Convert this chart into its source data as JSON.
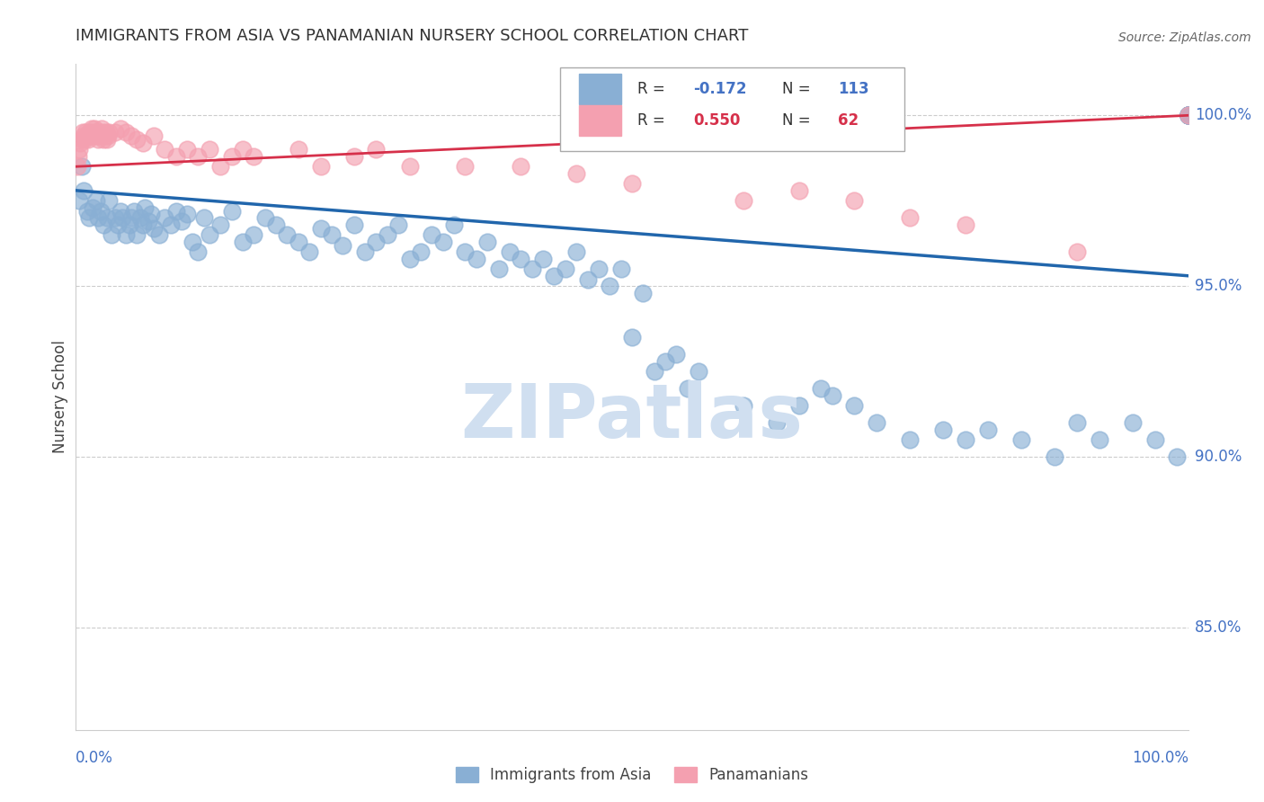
{
  "title": "IMMIGRANTS FROM ASIA VS PANAMANIAN NURSERY SCHOOL CORRELATION CHART",
  "source": "Source: ZipAtlas.com",
  "ylabel": "Nursery School",
  "xlim": [
    0.0,
    100.0
  ],
  "ylim": [
    82.0,
    101.5
  ],
  "yticks": [
    85.0,
    90.0,
    95.0,
    100.0
  ],
  "ytick_labels": [
    "85.0%",
    "90.0%",
    "95.0%",
    "100.0%"
  ],
  "legend_blue_r": "-0.172",
  "legend_blue_n": "113",
  "legend_pink_r": "0.550",
  "legend_pink_n": "62",
  "legend_label_blue": "Immigrants from Asia",
  "legend_label_pink": "Panamanians",
  "blue_color": "#89afd4",
  "blue_line_color": "#2166ac",
  "pink_color": "#f4a0b0",
  "pink_line_color": "#d6304a",
  "grid_color": "#cccccc",
  "title_color": "#333333",
  "axis_label_color": "#4472c4",
  "watermark_color": "#d0dff0",
  "blue_scatter_x": [
    0.3,
    0.5,
    0.7,
    1.0,
    1.2,
    1.5,
    1.8,
    2.0,
    2.2,
    2.5,
    2.8,
    3.0,
    3.2,
    3.5,
    3.8,
    4.0,
    4.2,
    4.5,
    4.8,
    5.0,
    5.2,
    5.5,
    5.8,
    6.0,
    6.2,
    6.5,
    6.8,
    7.0,
    7.5,
    8.0,
    8.5,
    9.0,
    9.5,
    10.0,
    10.5,
    11.0,
    11.5,
    12.0,
    13.0,
    14.0,
    15.0,
    16.0,
    17.0,
    18.0,
    19.0,
    20.0,
    21.0,
    22.0,
    23.0,
    24.0,
    25.0,
    26.0,
    27.0,
    28.0,
    29.0,
    30.0,
    31.0,
    32.0,
    33.0,
    34.0,
    35.0,
    36.0,
    37.0,
    38.0,
    39.0,
    40.0,
    41.0,
    42.0,
    43.0,
    44.0,
    45.0,
    46.0,
    47.0,
    48.0,
    49.0,
    50.0,
    51.0,
    52.0,
    53.0,
    54.0,
    55.0,
    56.0,
    60.0,
    63.0,
    65.0,
    67.0,
    68.0,
    70.0,
    72.0,
    75.0,
    78.0,
    80.0,
    82.0,
    85.0,
    88.0,
    90.0,
    92.0,
    95.0,
    97.0,
    99.0,
    100.0,
    100.0,
    100.0,
    100.0,
    100.0,
    100.0,
    100.0,
    100.0,
    100.0,
    100.0,
    100.0,
    100.0,
    100.0
  ],
  "blue_scatter_y": [
    97.5,
    98.5,
    97.8,
    97.2,
    97.0,
    97.3,
    97.5,
    97.0,
    97.2,
    96.8,
    97.0,
    97.5,
    96.5,
    97.0,
    96.8,
    97.2,
    97.0,
    96.5,
    96.8,
    97.0,
    97.2,
    96.5,
    97.0,
    96.8,
    97.3,
    96.9,
    97.1,
    96.7,
    96.5,
    97.0,
    96.8,
    97.2,
    96.9,
    97.1,
    96.3,
    96.0,
    97.0,
    96.5,
    96.8,
    97.2,
    96.3,
    96.5,
    97.0,
    96.8,
    96.5,
    96.3,
    96.0,
    96.7,
    96.5,
    96.2,
    96.8,
    96.0,
    96.3,
    96.5,
    96.8,
    95.8,
    96.0,
    96.5,
    96.3,
    96.8,
    96.0,
    95.8,
    96.3,
    95.5,
    96.0,
    95.8,
    95.5,
    95.8,
    95.3,
    95.5,
    96.0,
    95.2,
    95.5,
    95.0,
    95.5,
    93.5,
    94.8,
    92.5,
    92.8,
    93.0,
    92.0,
    92.5,
    91.5,
    91.0,
    91.5,
    92.0,
    91.8,
    91.5,
    91.0,
    90.5,
    90.8,
    90.5,
    90.8,
    90.5,
    90.0,
    91.0,
    90.5,
    91.0,
    90.5,
    90.0,
    100.0,
    100.0,
    100.0,
    100.0,
    100.0,
    100.0,
    100.0,
    100.0,
    100.0,
    100.0,
    100.0,
    100.0,
    100.0
  ],
  "pink_scatter_x": [
    0.1,
    0.2,
    0.3,
    0.4,
    0.5,
    0.6,
    0.7,
    0.8,
    0.9,
    1.0,
    1.1,
    1.2,
    1.3,
    1.4,
    1.5,
    1.6,
    1.7,
    1.8,
    1.9,
    2.0,
    2.1,
    2.2,
    2.3,
    2.4,
    2.5,
    2.6,
    2.7,
    2.8,
    2.9,
    3.0,
    3.5,
    4.0,
    4.5,
    5.0,
    5.5,
    6.0,
    7.0,
    8.0,
    9.0,
    10.0,
    11.0,
    12.0,
    13.0,
    14.0,
    15.0,
    16.0,
    20.0,
    22.0,
    25.0,
    27.0,
    30.0,
    35.0,
    40.0,
    45.0,
    50.0,
    60.0,
    65.0,
    70.0,
    75.0,
    80.0,
    90.0,
    100.0
  ],
  "pink_scatter_y": [
    98.5,
    98.8,
    99.0,
    99.2,
    99.3,
    99.5,
    99.4,
    99.3,
    99.5,
    99.4,
    99.3,
    99.5,
    99.4,
    99.6,
    99.5,
    99.4,
    99.6,
    99.5,
    99.4,
    99.3,
    99.5,
    99.4,
    99.6,
    99.5,
    99.3,
    99.4,
    99.5,
    99.3,
    99.4,
    99.5,
    99.5,
    99.6,
    99.5,
    99.4,
    99.3,
    99.2,
    99.4,
    99.0,
    98.8,
    99.0,
    98.8,
    99.0,
    98.5,
    98.8,
    99.0,
    98.8,
    99.0,
    98.5,
    98.8,
    99.0,
    98.5,
    98.5,
    98.5,
    98.3,
    98.0,
    97.5,
    97.8,
    97.5,
    97.0,
    96.8,
    96.0,
    100.0
  ],
  "blue_trend_x": [
    0.0,
    100.0
  ],
  "blue_trend_y": [
    97.8,
    95.3
  ],
  "pink_trend_x": [
    0.0,
    100.0
  ],
  "pink_trend_y": [
    98.5,
    100.0
  ]
}
